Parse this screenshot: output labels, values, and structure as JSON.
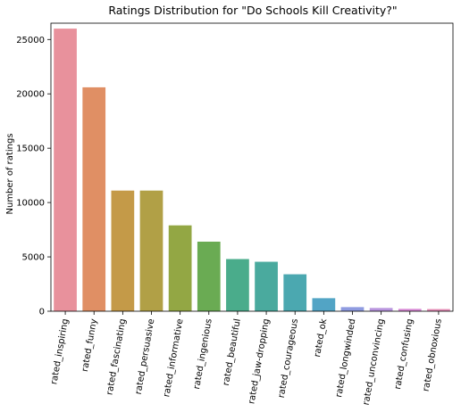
{
  "chart_data": {
    "type": "bar",
    "title": "Ratings Distribution for \"Do Schools Kill Creativity?\"",
    "xlabel": "",
    "ylabel": "Number of ratings",
    "ylim": [
      0,
      26500
    ],
    "yticks": [
      0,
      5000,
      10000,
      15000,
      20000,
      25000
    ],
    "ytick_labels": [
      "0",
      "5000",
      "10000",
      "15000",
      "20000",
      "25000"
    ],
    "grid": false,
    "categories": [
      "rated_inspiring",
      "rated_funny",
      "rated_fascinating",
      "rated_persuasive",
      "rated_informative",
      "rated_ingenious",
      "rated_beautiful",
      "rated_jaw-dropping",
      "rated_courageous",
      "rated_ok",
      "rated_longwinded",
      "rated_unconvincing",
      "rated_confusing",
      "rated_obnoxious"
    ],
    "values": [
      26000,
      20600,
      11100,
      11100,
      7900,
      6400,
      4800,
      4550,
      3400,
      1200,
      380,
      300,
      220,
      200
    ],
    "colors": [
      "#e8919c",
      "#e08f64",
      "#c49a48",
      "#b1a046",
      "#93a744",
      "#6aab53",
      "#4aac8b",
      "#4aaa9e",
      "#4ba8b0",
      "#52a4c5",
      "#8f9be0",
      "#b995de",
      "#d98ad6",
      "#e48cb6"
    ]
  }
}
